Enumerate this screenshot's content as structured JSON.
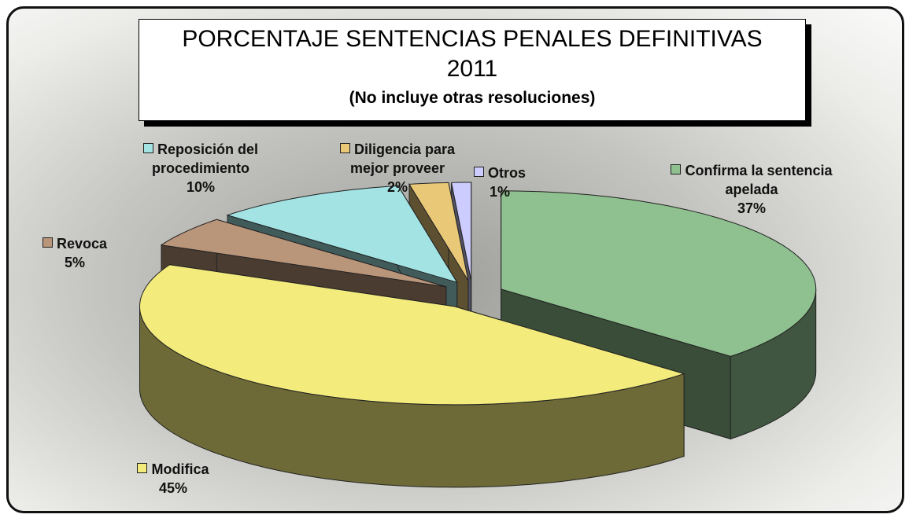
{
  "chart_data": {
    "type": "pie",
    "title": "PORCENTAJE SENTENCIAS PENALES DEFINITIVAS 2011",
    "subtitle": "(No incluye otras resoluciones)",
    "categories": [
      "Confirma la sentencia apelada",
      "Modifica",
      "Revoca",
      "Reposición del procedimiento",
      "Diligencia para mejor proveer",
      "Otros"
    ],
    "values": [
      37,
      45,
      5,
      10,
      2,
      1
    ],
    "value_labels": [
      "37%",
      "45%",
      "5%",
      "10%",
      "2%",
      "1%"
    ],
    "colors": [
      "#8fc08f",
      "#f3ec7c",
      "#b9957a",
      "#a3e3e3",
      "#e9c878",
      "#ccccff"
    ]
  }
}
